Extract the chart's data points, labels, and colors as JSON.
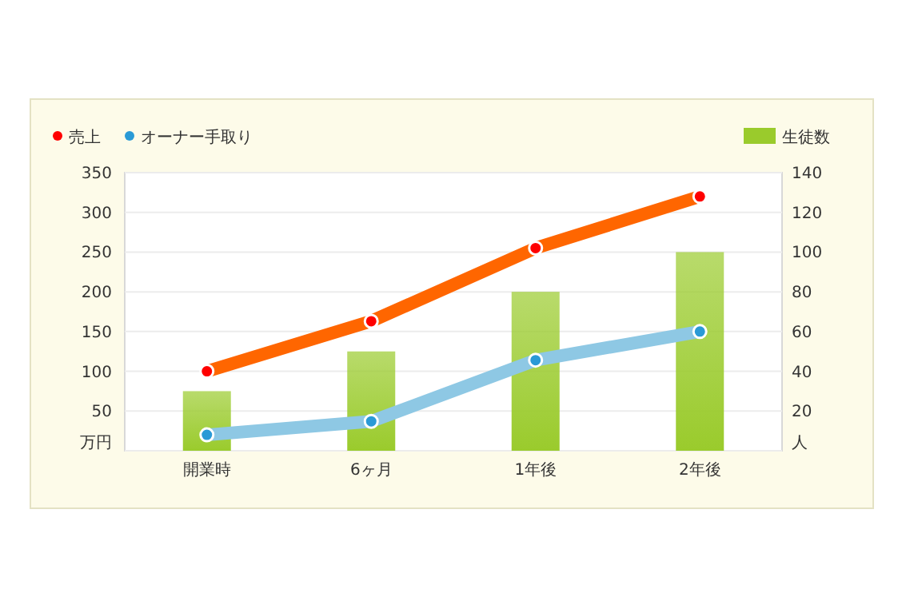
{
  "chart_data": {
    "type": "line",
    "categories": [
      "開業時",
      "6ヶ月",
      "1年後",
      "2年後"
    ],
    "series": [
      {
        "name": "生徒数",
        "type": "bar",
        "axis": "y2",
        "color": "#9acb2c",
        "values": [
          30,
          50,
          80,
          100
        ]
      },
      {
        "name": "売上",
        "color": "#ff6600",
        "values": [
          100,
          163,
          255,
          320
        ]
      },
      {
        "name": "オーナー手取り",
        "color": "#8ec8e4",
        "values": [
          20,
          37,
          114,
          150
        ]
      }
    ],
    "ylim": [
      0,
      350
    ],
    "yticks": [
      {
        "value": 0,
        "label": "万円"
      },
      50,
      100,
      150,
      200,
      250,
      300,
      350
    ],
    "y2lim": [
      0,
      140
    ],
    "y2ticks": [
      {
        "value": 0,
        "label": "人"
      },
      20,
      40,
      60,
      80,
      100,
      120,
      140
    ],
    "grid": "y",
    "legend": "top",
    "marker": "circle",
    "line_style": "solid"
  }
}
